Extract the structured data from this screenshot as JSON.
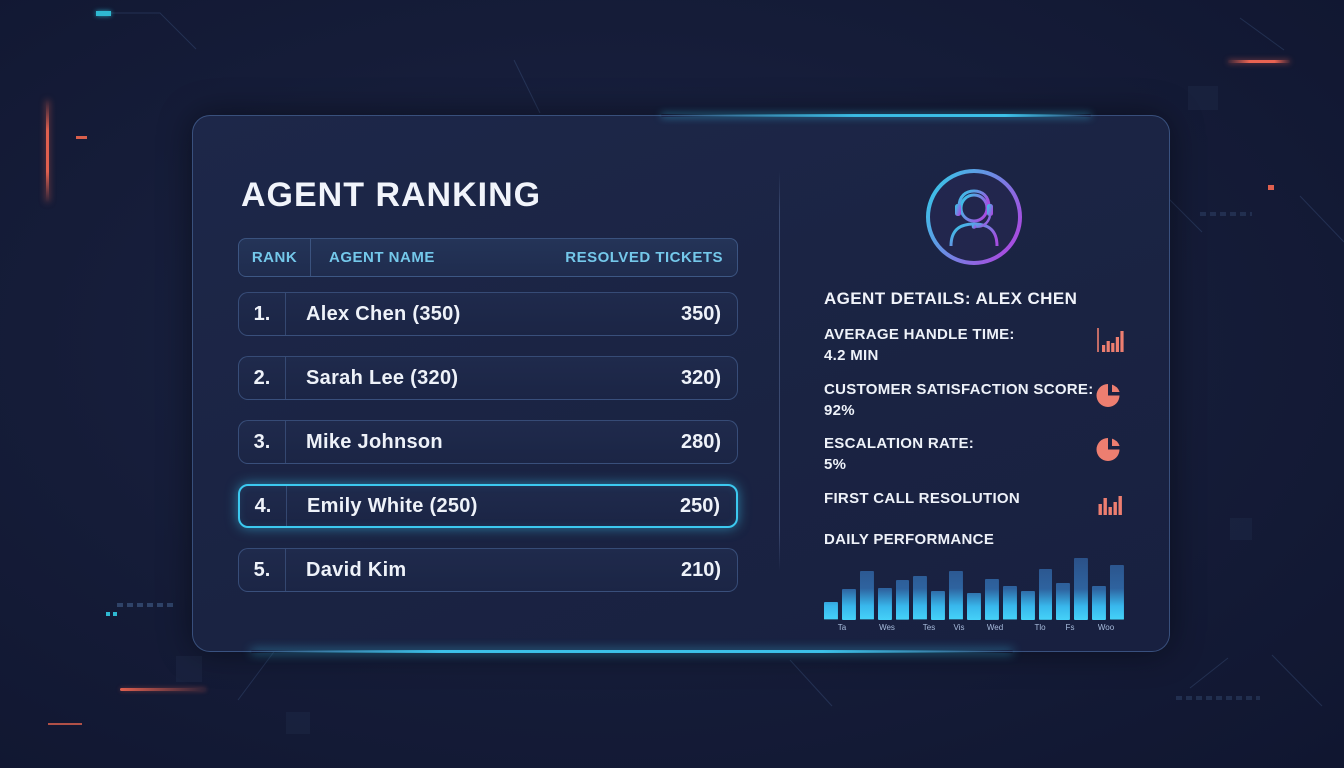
{
  "title": "AGENT RANKING",
  "table": {
    "headers": {
      "rank": "RANK",
      "name": "AGENT NAME",
      "tickets": "RESOLVED TICKETS"
    },
    "rows": [
      {
        "rank": "1.",
        "name": "Alex Chen (350)",
        "tickets": "350)"
      },
      {
        "rank": "2.",
        "name": "Sarah Lee (320)",
        "tickets": "320)"
      },
      {
        "rank": "3.",
        "name": "Mike Johnson",
        "tickets": "280)"
      },
      {
        "rank": "4.",
        "name": "Emily White (250)",
        "tickets": "250)",
        "selected": true
      },
      {
        "rank": "5.",
        "name": "David Kim",
        "tickets": "210)"
      }
    ]
  },
  "details": {
    "heading": "AGENT DETAILS: ALEX CHEN",
    "avatar_icon": "headset-agent-icon",
    "stats": [
      {
        "label": "AVERAGE HANDLE TIME:",
        "value": "4.2 MIN",
        "icon": "bar-chart-axis-icon"
      },
      {
        "label": "CUSTOMER SATISFACTION SCORE:",
        "value": "92%",
        "icon": "pie-chart-icon"
      },
      {
        "label": "ESCALATION RATE:",
        "value": "5%",
        "icon": "pie-chart-icon"
      },
      {
        "label": "FIRST CALL RESOLUTION",
        "value": "",
        "icon": "bar-chart-icon"
      }
    ]
  },
  "chart_data": {
    "type": "bar",
    "title": "DAILY PERFORMANCE",
    "values": [
      28,
      50,
      78,
      52,
      64,
      70,
      47,
      78,
      44,
      66,
      54,
      47,
      82,
      60,
      100,
      55,
      88
    ],
    "ylim": [
      0,
      100
    ],
    "grid": false,
    "legend": null,
    "x_tick_labels": [
      {
        "label": "Ta",
        "pos": 6
      },
      {
        "label": "Wes",
        "pos": 21
      },
      {
        "label": "Tes",
        "pos": 35
      },
      {
        "label": "Vis",
        "pos": 45
      },
      {
        "label": "Wed",
        "pos": 57
      },
      {
        "label": "Tlo",
        "pos": 72
      },
      {
        "label": "Fs",
        "pos": 82
      },
      {
        "label": "Woo",
        "pos": 94
      }
    ]
  },
  "colors": {
    "accent_cyan": "#3cc9f0",
    "coral": "#ed7e70",
    "header_text": "#74c8ea",
    "bar_gradient_top": "#2b5188",
    "bar_gradient_bottom": "#45d2f8",
    "avatar_gradient": [
      "#2ed0e8",
      "#a44fe0"
    ]
  }
}
